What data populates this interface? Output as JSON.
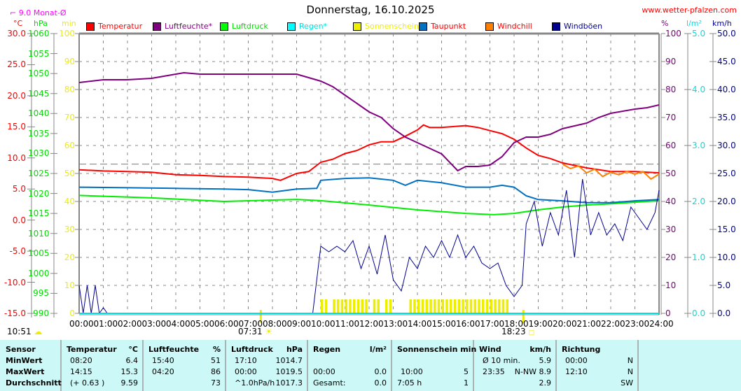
{
  "chart_data": {
    "type": "line",
    "title": "Donnerstag, 16.10.2025",
    "site": "www.wetter-pfalzen.com",
    "monthly_avg_label": "9.0 Monat-Ø",
    "monthly_avg_temp": 9.0,
    "grid": true,
    "legend_placement": "top",
    "x_ticks": [
      "00:00",
      "01:00",
      "02:00",
      "03:00",
      "04:00",
      "05:00",
      "06:00",
      "07:00",
      "08:00",
      "09:00",
      "10:00",
      "11:00",
      "12:00",
      "13:00",
      "14:00",
      "15:00",
      "16:00",
      "17:00",
      "18:00",
      "19:00",
      "20:00",
      "21:00",
      "22:00",
      "23:00",
      "24:00"
    ],
    "axes": {
      "temp": {
        "unit": "°C",
        "range": [
          -15,
          30
        ],
        "ticks": [
          "30.0",
          "25.0",
          "20.0",
          "15.0",
          "10.0",
          "5.0",
          "0.0",
          "-5.0",
          "-10.0",
          "-15.0"
        ],
        "color": "#ff0000"
      },
      "pressure": {
        "unit": "hPa",
        "range": [
          990,
          1060
        ],
        "ticks": [
          "1060",
          "1055",
          "1050",
          "1045",
          "1040",
          "1035",
          "1030",
          "1025",
          "1020",
          "1015",
          "1010",
          "1005",
          "1000",
          "995",
          "990"
        ],
        "color": "#00ee00"
      },
      "sun": {
        "unit": "min",
        "range": [
          0,
          100
        ],
        "ticks": [
          "100",
          "90",
          "80",
          "70",
          "60",
          "50",
          "40",
          "30",
          "20",
          "10",
          "0"
        ],
        "color": "#eeee00"
      },
      "humidity": {
        "unit": "%",
        "range": [
          0,
          100
        ],
        "ticks": [
          "100",
          "90",
          "80",
          "70",
          "60",
          "50",
          "40",
          "30",
          "20",
          "10",
          "0"
        ],
        "color": "#800080"
      },
      "rain": {
        "unit": "l/m²",
        "range": [
          0,
          5
        ],
        "ticks": [
          "5.0",
          "4.0",
          "3.0",
          "2.0",
          "1.0",
          "0.0"
        ],
        "color": "#00e0e0"
      },
      "wind": {
        "unit": "km/h",
        "range": [
          0,
          50
        ],
        "ticks": [
          "50.0",
          "45.0",
          "40.0",
          "35.0",
          "30.0",
          "25.0",
          "20.0",
          "15.0",
          "10.0",
          "5.0",
          "0.0"
        ],
        "color": "#000090"
      }
    },
    "legend": [
      {
        "name": "Temperatur",
        "color": "#ff0000",
        "text_color": "#ff0000"
      },
      {
        "name": "Luftfeuchte*",
        "color": "#800080",
        "text_color": "#800080"
      },
      {
        "name": "Luftdruck",
        "color": "#00ff00",
        "text_color": "#00dd00"
      },
      {
        "name": "Regen*",
        "color": "#00ffff",
        "text_color": "#00e0e0"
      },
      {
        "name": "Sonnenschein",
        "color": "#eeee00",
        "text_color": "#eeee00"
      },
      {
        "name": "Taupunkt",
        "color": "#0070c0",
        "text_color": "#ff0000"
      },
      {
        "name": "Windchill",
        "color": "#ff8000",
        "text_color": "#ff0000"
      },
      {
        "name": "Windböen",
        "color": "#000090",
        "text_color": "#000090"
      }
    ],
    "series": [
      {
        "name": "Temperatur",
        "axis": "temp",
        "color": "#ff0000",
        "points": [
          [
            "00:00",
            8.1
          ],
          [
            "01:00",
            7.9
          ],
          [
            "02:00",
            7.8
          ],
          [
            "03:00",
            7.7
          ],
          [
            "04:00",
            7.3
          ],
          [
            "05:00",
            7.2
          ],
          [
            "06:00",
            7.0
          ],
          [
            "07:00",
            6.9
          ],
          [
            "08:00",
            6.7
          ],
          [
            "08:20",
            6.4
          ],
          [
            "09:00",
            7.5
          ],
          [
            "09:30",
            7.8
          ],
          [
            "10:00",
            9.3
          ],
          [
            "10:30",
            9.8
          ],
          [
            "11:00",
            10.7
          ],
          [
            "11:30",
            11.2
          ],
          [
            "12:00",
            12.1
          ],
          [
            "12:30",
            12.6
          ],
          [
            "13:00",
            12.6
          ],
          [
            "13:30",
            13.5
          ],
          [
            "14:00",
            14.5
          ],
          [
            "14:15",
            15.3
          ],
          [
            "14:30",
            14.9
          ],
          [
            "15:00",
            14.9
          ],
          [
            "16:00",
            15.2
          ],
          [
            "16:30",
            14.9
          ],
          [
            "17:00",
            14.4
          ],
          [
            "17:30",
            13.9
          ],
          [
            "18:00",
            13.0
          ],
          [
            "18:30",
            11.6
          ],
          [
            "19:00",
            10.4
          ],
          [
            "19:30",
            9.9
          ],
          [
            "20:00",
            9.2
          ],
          [
            "21:00",
            8.4
          ],
          [
            "22:00",
            7.8
          ],
          [
            "23:00",
            7.8
          ],
          [
            "24:00",
            7.6
          ]
        ]
      },
      {
        "name": "Luftfeuchte*",
        "axis": "humidity",
        "color": "#800080",
        "points": [
          [
            "00:00",
            82.5
          ],
          [
            "01:00",
            83.5
          ],
          [
            "02:00",
            83.5
          ],
          [
            "03:00",
            84
          ],
          [
            "04:00",
            85.5
          ],
          [
            "04:20",
            86
          ],
          [
            "05:00",
            85.5
          ],
          [
            "06:00",
            85.5
          ],
          [
            "07:00",
            85.5
          ],
          [
            "08:00",
            85.5
          ],
          [
            "09:00",
            85.5
          ],
          [
            "10:00",
            83
          ],
          [
            "10:30",
            81
          ],
          [
            "11:00",
            78
          ],
          [
            "11:30",
            75
          ],
          [
            "12:00",
            72
          ],
          [
            "12:30",
            70
          ],
          [
            "13:00",
            66
          ],
          [
            "13:30",
            63
          ],
          [
            "14:00",
            61
          ],
          [
            "14:30",
            59
          ],
          [
            "15:00",
            57
          ],
          [
            "15:40",
            51
          ],
          [
            "16:00",
            52.5
          ],
          [
            "16:30",
            52.5
          ],
          [
            "17:00",
            53
          ],
          [
            "17:30",
            56
          ],
          [
            "18:00",
            61
          ],
          [
            "18:30",
            63
          ],
          [
            "19:00",
            63
          ],
          [
            "19:30",
            64
          ],
          [
            "20:00",
            66
          ],
          [
            "20:30",
            67
          ],
          [
            "21:00",
            68
          ],
          [
            "21:30",
            70
          ],
          [
            "22:00",
            71.5
          ],
          [
            "23:00",
            73
          ],
          [
            "23:30",
            73.5
          ],
          [
            "24:00",
            74.5
          ]
        ]
      },
      {
        "name": "Luftdruck",
        "axis": "pressure",
        "color": "#00ee00",
        "points": [
          [
            "00:00",
            1019.5
          ],
          [
            "03:00",
            1018.9
          ],
          [
            "06:00",
            1018.0
          ],
          [
            "09:00",
            1018.5
          ],
          [
            "10:00",
            1018.2
          ],
          [
            "12:00",
            1017.1
          ],
          [
            "14:00",
            1015.9
          ],
          [
            "16:00",
            1015.0
          ],
          [
            "17:10",
            1014.7
          ],
          [
            "18:00",
            1015.0
          ],
          [
            "19:00",
            1015.9
          ],
          [
            "20:00",
            1016.6
          ],
          [
            "21:00",
            1017.1
          ],
          [
            "22:00",
            1017.4
          ],
          [
            "23:00",
            1017.8
          ],
          [
            "24:00",
            1018.2
          ]
        ]
      },
      {
        "name": "Taupunkt",
        "axis": "temp",
        "color": "#0070c0",
        "points": [
          [
            "00:00",
            5.3
          ],
          [
            "02:00",
            5.2
          ],
          [
            "04:00",
            5.1
          ],
          [
            "06:00",
            5.0
          ],
          [
            "07:00",
            4.9
          ],
          [
            "08:00",
            4.5
          ],
          [
            "09:00",
            5.0
          ],
          [
            "09:50",
            5.1
          ],
          [
            "10:00",
            6.4
          ],
          [
            "11:00",
            6.7
          ],
          [
            "12:00",
            6.8
          ],
          [
            "13:00",
            6.4
          ],
          [
            "13:30",
            5.6
          ],
          [
            "14:00",
            6.4
          ],
          [
            "15:00",
            6.0
          ],
          [
            "16:00",
            5.3
          ],
          [
            "17:00",
            5.3
          ],
          [
            "17:30",
            5.6
          ],
          [
            "18:00",
            5.3
          ],
          [
            "18:30",
            3.9
          ],
          [
            "19:00",
            3.3
          ],
          [
            "20:00",
            3.1
          ],
          [
            "21:00",
            2.8
          ],
          [
            "22:00",
            2.8
          ],
          [
            "23:00",
            3.1
          ],
          [
            "24:00",
            3.3
          ]
        ]
      },
      {
        "name": "Windchill",
        "axis": "temp",
        "color": "#ff8000",
        "points": [
          [
            "20:00",
            9.0
          ],
          [
            "20:20",
            8.3
          ],
          [
            "20:40",
            8.7
          ],
          [
            "21:00",
            7.6
          ],
          [
            "21:20",
            8.2
          ],
          [
            "21:40",
            7.0
          ],
          [
            "22:00",
            7.7
          ],
          [
            "22:20",
            7.3
          ],
          [
            "22:40",
            7.8
          ],
          [
            "23:00",
            7.4
          ],
          [
            "23:20",
            7.8
          ],
          [
            "23:40",
            6.6
          ],
          [
            "24:00",
            7.4
          ]
        ]
      },
      {
        "name": "Windböen",
        "axis": "wind",
        "color": "#000090",
        "points": [
          [
            "00:00",
            5
          ],
          [
            "00:10",
            0
          ],
          [
            "00:20",
            5
          ],
          [
            "00:30",
            0
          ],
          [
            "00:40",
            5
          ],
          [
            "00:50",
            0
          ],
          [
            "01:00",
            1
          ],
          [
            "01:10",
            0
          ],
          [
            "09:40",
            0
          ],
          [
            "10:00",
            12
          ],
          [
            "10:20",
            11
          ],
          [
            "10:40",
            12
          ],
          [
            "11:00",
            11
          ],
          [
            "11:20",
            13
          ],
          [
            "11:40",
            8
          ],
          [
            "12:00",
            12
          ],
          [
            "12:20",
            7
          ],
          [
            "12:40",
            14
          ],
          [
            "13:00",
            6
          ],
          [
            "13:20",
            4
          ],
          [
            "13:40",
            10
          ],
          [
            "14:00",
            8
          ],
          [
            "14:20",
            12
          ],
          [
            "14:40",
            10
          ],
          [
            "15:00",
            13
          ],
          [
            "15:20",
            10
          ],
          [
            "15:40",
            14
          ],
          [
            "16:00",
            10
          ],
          [
            "16:20",
            12
          ],
          [
            "16:40",
            9
          ],
          [
            "17:00",
            8
          ],
          [
            "17:20",
            9
          ],
          [
            "17:40",
            5
          ],
          [
            "18:00",
            3
          ],
          [
            "18:20",
            5
          ],
          [
            "18:30",
            16
          ],
          [
            "18:50",
            20
          ],
          [
            "19:10",
            12
          ],
          [
            "19:30",
            18
          ],
          [
            "19:50",
            14
          ],
          [
            "20:10",
            22
          ],
          [
            "20:30",
            10
          ],
          [
            "20:50",
            24
          ],
          [
            "21:10",
            14
          ],
          [
            "21:30",
            18
          ],
          [
            "21:50",
            14
          ],
          [
            "22:10",
            16
          ],
          [
            "22:30",
            13
          ],
          [
            "22:50",
            19
          ],
          [
            "23:10",
            17
          ],
          [
            "23:30",
            15
          ],
          [
            "23:50",
            18
          ],
          [
            "24:00",
            22
          ]
        ]
      }
    ],
    "sunshine_intervals": [
      [
        "10:00",
        "10:20"
      ],
      [
        "10:30",
        "12:00"
      ],
      [
        "12:10",
        "12:30"
      ],
      [
        "12:40",
        "13:00"
      ],
      [
        "13:40",
        "17:50"
      ]
    ],
    "sunshine_bar_min": 5,
    "sunrise": "07:31",
    "sunset": "18:23",
    "current_time": "10:51"
  },
  "table": {
    "headers": {
      "sensor": "Sensor",
      "temp": "Temperatur",
      "temp_unit": "°C",
      "hum": "Luftfeuchte",
      "hum_unit": "%",
      "press": "Luftdruck",
      "press_unit": "hPa",
      "rain": "Regen",
      "rain_unit": "l/m²",
      "sun": "Sonnenschein min",
      "wind": "Wind",
      "wind_unit": "km/h",
      "dir": "Richtung"
    },
    "rows": [
      {
        "label": "MinWert",
        "temp_time": "08:20",
        "temp": "6.4",
        "hum_time": "15:40",
        "hum": "51",
        "press_time": "17:10",
        "press": "1014.7",
        "rain_time": "",
        "rain": "",
        "sun_time": "",
        "sun": "",
        "wind_time": "Ø 10 min.",
        "wind": "5.9",
        "dir_time": "00:00",
        "dir": "N"
      },
      {
        "label": "MaxWert",
        "temp_time": "14:15",
        "temp": "15.3",
        "hum_time": "04:20",
        "hum": "86",
        "press_time": "00:00",
        "press": "1019.5",
        "rain_time": "00:00",
        "rain": "0.0",
        "sun_time": "10:00",
        "sun": "5",
        "wind_time": "23:35",
        "wind": "N-NW 8.9",
        "dir_time": "12:10",
        "dir": "N"
      },
      {
        "label": "Durchschnitt",
        "temp_time": "(+ 0.63 )",
        "temp": "9.59",
        "hum_time": "",
        "hum": "73",
        "press_time": "^1.0hPa/h",
        "press": "1017.3",
        "rain_time": "Gesamt:",
        "rain": "0.0",
        "sun_time": "7:05 h",
        "sun": "1",
        "wind_time": "",
        "wind": "2.9",
        "dir_time": "",
        "dir": "SW"
      }
    ]
  }
}
